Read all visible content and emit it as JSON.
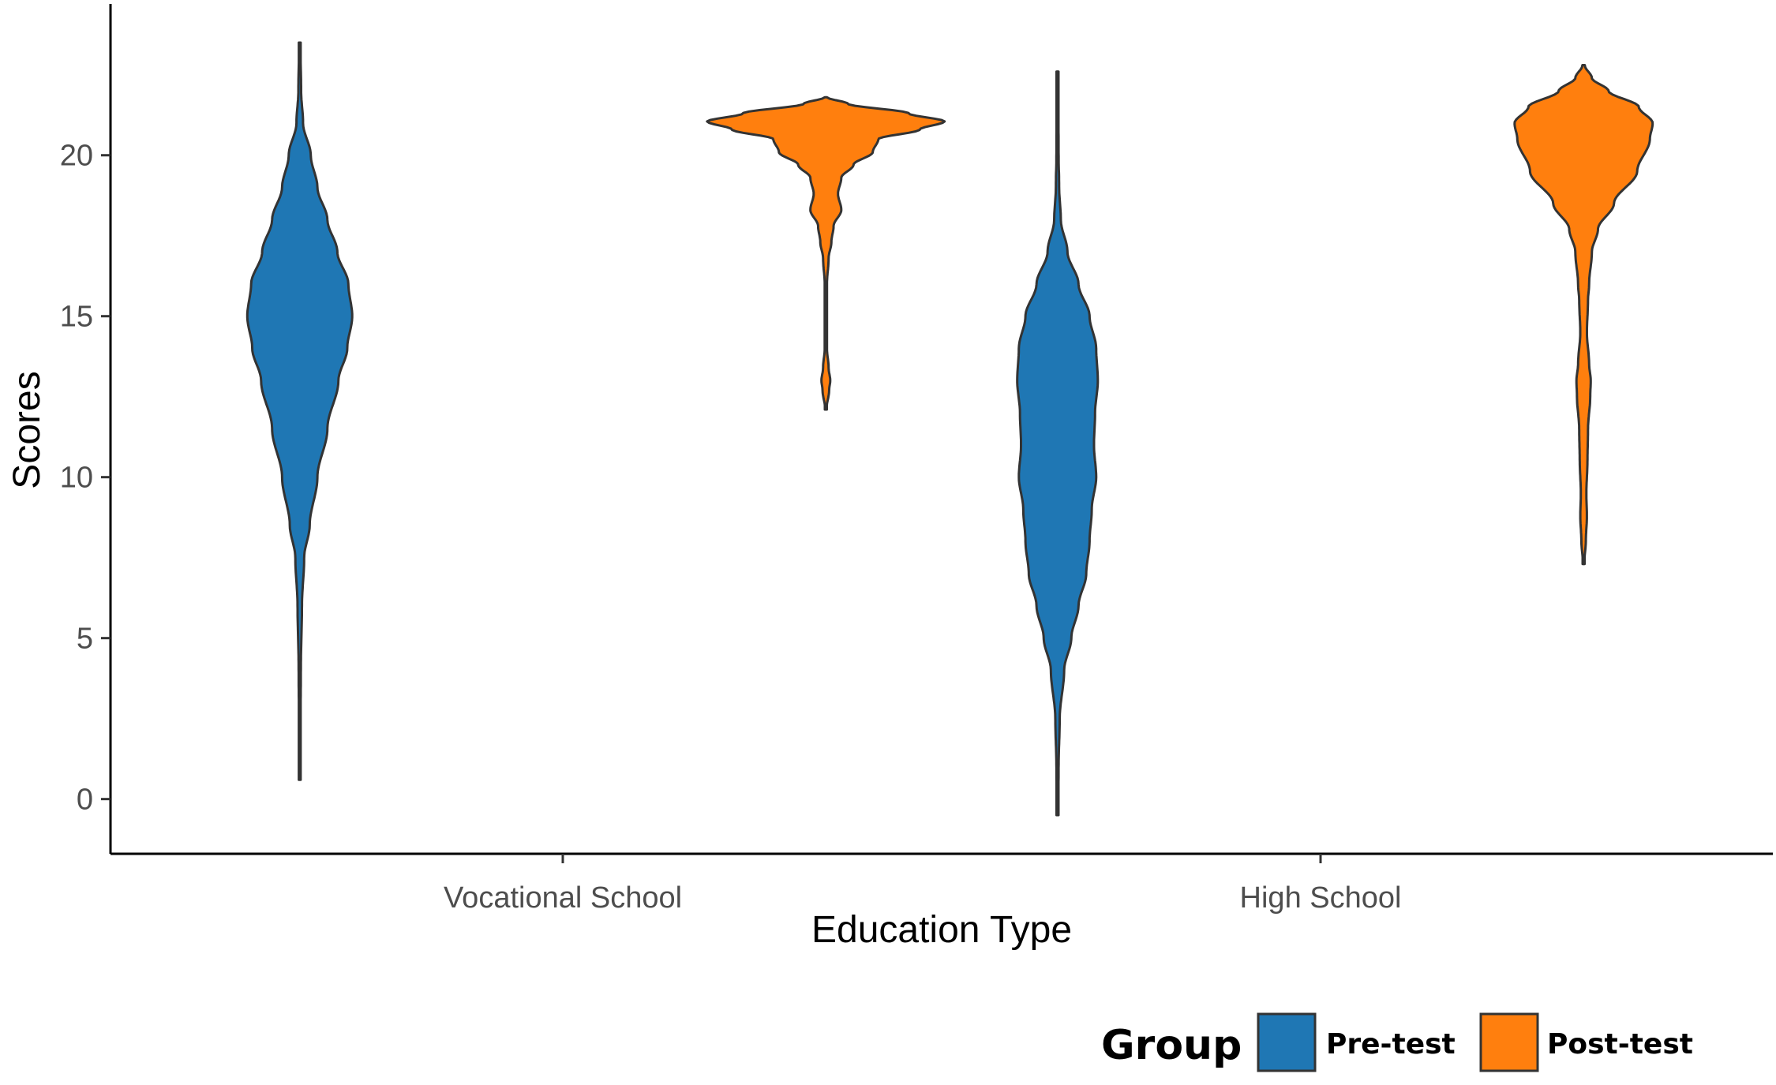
{
  "chart_data": {
    "type": "violin",
    "xlabel": "Education Type",
    "ylabel": "Scores",
    "categories": [
      "Vocational School",
      "High School"
    ],
    "y_ticks": [
      0,
      5,
      10,
      15,
      20
    ],
    "ylim": [
      -1.7,
      24.7
    ],
    "grid": false,
    "legend": {
      "title": "Group",
      "position": "bottom-right",
      "entries": [
        {
          "label": "Pre-test",
          "color": "#1f77b4"
        },
        {
          "label": "Post-test",
          "color": "#ff7f0e"
        }
      ]
    },
    "series": [
      {
        "name": "Pre-test",
        "color": "#1f77b4",
        "violins": [
          {
            "category": "Vocational School",
            "y_min": 0.6,
            "y_max": 23.5,
            "density": [
              [
                0.6,
                0.01
              ],
              [
                2,
                0.012
              ],
              [
                4,
                0.02
              ],
              [
                6,
                0.04
              ],
              [
                7.5,
                0.08
              ],
              [
                8.5,
                0.18
              ],
              [
                10,
                0.32
              ],
              [
                11.5,
                0.5
              ],
              [
                13,
                0.7
              ],
              [
                14,
                0.86
              ],
              [
                15,
                0.95
              ],
              [
                16,
                0.88
              ],
              [
                17,
                0.68
              ],
              [
                18,
                0.5
              ],
              [
                19,
                0.32
              ],
              [
                20,
                0.2
              ],
              [
                21,
                0.06
              ],
              [
                22,
                0.025
              ],
              [
                23.5,
                0.01
              ]
            ]
          },
          {
            "category": "High School",
            "y_min": -0.5,
            "y_max": 22.6,
            "density": [
              [
                -0.5,
                0.01
              ],
              [
                1,
                0.02
              ],
              [
                2.5,
                0.04
              ],
              [
                4,
                0.12
              ],
              [
                5,
                0.25
              ],
              [
                6,
                0.38
              ],
              [
                7,
                0.52
              ],
              [
                8,
                0.58
              ],
              [
                9,
                0.62
              ],
              [
                10,
                0.7
              ],
              [
                11,
                0.66
              ],
              [
                12,
                0.68
              ],
              [
                13,
                0.73
              ],
              [
                14,
                0.7
              ],
              [
                15,
                0.58
              ],
              [
                16,
                0.38
              ],
              [
                17,
                0.18
              ],
              [
                18,
                0.06
              ],
              [
                19,
                0.03
              ],
              [
                20,
                0.02
              ],
              [
                22.6,
                0.01
              ]
            ]
          }
        ]
      },
      {
        "name": "Post-test",
        "color": "#ff7f0e",
        "violins": [
          {
            "category": "Vocational School",
            "y_min": 12.1,
            "y_max": 21.8,
            "density": [
              [
                12.1,
                0.01
              ],
              [
                12.7,
                0.06
              ],
              [
                13,
                0.08
              ],
              [
                13.4,
                0.05
              ],
              [
                14,
                0.02
              ],
              [
                16,
                0.02
              ],
              [
                16.8,
                0.05
              ],
              [
                17.3,
                0.1
              ],
              [
                17.8,
                0.14
              ],
              [
                18.3,
                0.28
              ],
              [
                18.8,
                0.22
              ],
              [
                19.3,
                0.28
              ],
              [
                19.7,
                0.5
              ],
              [
                20.1,
                0.85
              ],
              [
                20.5,
                0.95
              ],
              [
                20.8,
                1.7
              ],
              [
                21.05,
                2.15
              ],
              [
                21.3,
                1.5
              ],
              [
                21.6,
                0.4
              ],
              [
                21.8,
                0.02
              ]
            ]
          },
          {
            "category": "High School",
            "y_min": 7.3,
            "y_max": 22.8,
            "density": [
              [
                7.3,
                0.01
              ],
              [
                8,
                0.04
              ],
              [
                8.8,
                0.06
              ],
              [
                9.5,
                0.05
              ],
              [
                10.5,
                0.07
              ],
              [
                11.5,
                0.08
              ],
              [
                12.5,
                0.12
              ],
              [
                13,
                0.13
              ],
              [
                13.5,
                0.1
              ],
              [
                14.5,
                0.06
              ],
              [
                15.5,
                0.08
              ],
              [
                16,
                0.1
              ],
              [
                17,
                0.15
              ],
              [
                17.7,
                0.26
              ],
              [
                18.5,
                0.55
              ],
              [
                19.5,
                0.97
              ],
              [
                20.5,
                1.2
              ],
              [
                21,
                1.25
              ],
              [
                21.5,
                1.0
              ],
              [
                22,
                0.45
              ],
              [
                22.4,
                0.15
              ],
              [
                22.8,
                0.02
              ]
            ]
          }
        ]
      }
    ]
  }
}
